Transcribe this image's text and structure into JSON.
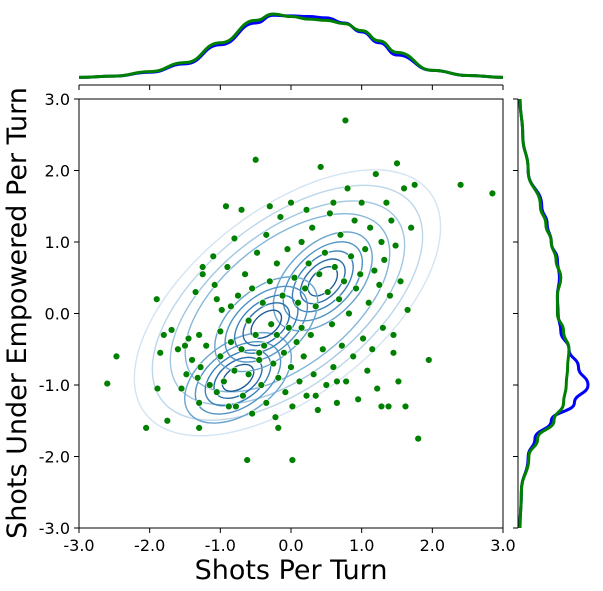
{
  "chart_data": {
    "type": "scatter",
    "title": "",
    "xlabel": "Shots Per Turn",
    "ylabel": "Shots Under Empowered Per Turn",
    "xlim": [
      -3.0,
      3.0
    ],
    "ylim": [
      -3.0,
      3.0
    ],
    "xticks": [
      "-3.0",
      "-2.0",
      "-1.0",
      "0.0",
      "1.0",
      "2.0",
      "3.0"
    ],
    "yticks": [
      "-3.0",
      "-2.0",
      "-1.0",
      "0.0",
      "1.0",
      "2.0",
      "3.0"
    ],
    "grid": false,
    "legend": "none",
    "colors": {
      "points": "#008000",
      "marginal_a": "#0000ff",
      "marginal_b": "#008000",
      "contours": "Blues"
    },
    "points": [
      [
        -2.6,
        -0.98
      ],
      [
        -2.47,
        -0.6
      ],
      [
        -2.05,
        -1.6
      ],
      [
        -1.9,
        0.2
      ],
      [
        -1.89,
        -1.05
      ],
      [
        -1.85,
        -0.55
      ],
      [
        -1.8,
        -0.3
      ],
      [
        -1.75,
        -1.5
      ],
      [
        -1.69,
        -0.23
      ],
      [
        -1.6,
        -0.5
      ],
      [
        -1.55,
        -1.05
      ],
      [
        -1.5,
        -0.45
      ],
      [
        -1.48,
        -0.85
      ],
      [
        -1.45,
        -0.35
      ],
      [
        -1.4,
        -0.65
      ],
      [
        -1.35,
        0.3
      ],
      [
        -1.32,
        -0.9
      ],
      [
        -1.3,
        -0.3
      ],
      [
        -1.3,
        -1.25
      ],
      [
        -1.28,
        -0.75
      ],
      [
        -1.25,
        0.55
      ],
      [
        -1.2,
        -0.45
      ],
      [
        -1.15,
        -1.0
      ],
      [
        -1.1,
        0.8
      ],
      [
        -1.08,
        0.4
      ],
      [
        -1.05,
        -1.1
      ],
      [
        -1.0,
        -0.25
      ],
      [
        -1.0,
        -0.6
      ],
      [
        -0.98,
        0.05
      ],
      [
        -0.95,
        -0.95
      ],
      [
        -0.9,
        0.65
      ],
      [
        -0.85,
        0.1
      ],
      [
        -0.85,
        -0.4
      ],
      [
        -0.8,
        1.05
      ],
      [
        -0.8,
        -0.8
      ],
      [
        -0.78,
        -1.3
      ],
      [
        -0.75,
        0.25
      ],
      [
        -0.7,
        -0.5
      ],
      [
        -0.68,
        -1.15
      ],
      [
        -0.65,
        0.55
      ],
      [
        -0.6,
        -0.1
      ],
      [
        -0.6,
        -0.85
      ],
      [
        -0.55,
        0.35
      ],
      [
        -0.55,
        -1.4
      ],
      [
        -0.5,
        2.15
      ],
      [
        -0.5,
        -0.3
      ],
      [
        -0.48,
        0.85
      ],
      [
        -0.45,
        -0.65
      ],
      [
        -0.42,
        -1.0
      ],
      [
        -0.4,
        0.15
      ],
      [
        -0.38,
        -0.45
      ],
      [
        -0.35,
        1.1
      ],
      [
        -0.35,
        -1.25
      ],
      [
        -0.3,
        0.45
      ],
      [
        -0.28,
        -0.15
      ],
      [
        -0.25,
        -0.7
      ],
      [
        -0.22,
        -1.45
      ],
      [
        -0.2,
        0.7
      ],
      [
        -0.2,
        -0.3
      ],
      [
        -0.18,
        -0.9
      ],
      [
        -0.15,
        1.35
      ],
      [
        -0.12,
        0.25
      ],
      [
        -0.1,
        -0.55
      ],
      [
        -0.08,
        -1.1
      ],
      [
        -0.05,
        0.9
      ],
      [
        -0.03,
        -0.2
      ],
      [
        0.0,
        -0.75
      ],
      [
        0.0,
        1.55
      ],
      [
        0.02,
        -1.3
      ],
      [
        0.05,
        0.5
      ],
      [
        0.08,
        -0.4
      ],
      [
        0.1,
        0.15
      ],
      [
        0.12,
        -0.95
      ],
      [
        0.15,
        1.0
      ],
      [
        0.18,
        -0.6
      ],
      [
        0.2,
        0.35
      ],
      [
        0.22,
        -1.15
      ],
      [
        0.25,
        0.7
      ],
      [
        0.28,
        -0.3
      ],
      [
        0.3,
        1.2
      ],
      [
        0.32,
        -0.85
      ],
      [
        0.35,
        0.1
      ],
      [
        0.38,
        -1.35
      ],
      [
        0.4,
        0.55
      ],
      [
        0.42,
        2.05
      ],
      [
        0.45,
        -0.5
      ],
      [
        0.48,
        0.85
      ],
      [
        0.5,
        -1.0
      ],
      [
        0.52,
        0.3
      ],
      [
        0.55,
        1.4
      ],
      [
        0.58,
        -0.15
      ],
      [
        0.6,
        -0.75
      ],
      [
        0.62,
        0.65
      ],
      [
        0.65,
        -1.25
      ],
      [
        0.68,
        0.2
      ],
      [
        0.7,
        1.1
      ],
      [
        0.72,
        -0.45
      ],
      [
        0.75,
        0.45
      ],
      [
        0.78,
        -0.95
      ],
      [
        0.8,
        1.75
      ],
      [
        0.82,
        0.0
      ],
      [
        0.85,
        0.8
      ],
      [
        0.88,
        -0.6
      ],
      [
        0.9,
        1.3
      ],
      [
        0.92,
        0.35
      ],
      [
        0.95,
        -1.2
      ],
      [
        0.98,
        0.55
      ],
      [
        1.0,
        1.55
      ],
      [
        1.02,
        -0.35
      ],
      [
        1.05,
        0.9
      ],
      [
        1.08,
        -0.8
      ],
      [
        1.1,
        0.15
      ],
      [
        1.12,
        1.2
      ],
      [
        1.15,
        -0.5
      ],
      [
        1.18,
        0.6
      ],
      [
        1.2,
        1.95
      ],
      [
        1.22,
        -1.05
      ],
      [
        1.25,
        0.4
      ],
      [
        1.28,
        1.0
      ],
      [
        1.3,
        -0.2
      ],
      [
        1.32,
        0.75
      ],
      [
        1.35,
        1.55
      ],
      [
        1.38,
        -1.3
      ],
      [
        1.4,
        0.25
      ],
      [
        1.42,
        1.3
      ],
      [
        1.45,
        -0.55
      ],
      [
        1.48,
        0.95
      ],
      [
        1.5,
        2.1
      ],
      [
        1.52,
        -0.95
      ],
      [
        1.55,
        0.45
      ],
      [
        1.6,
        1.75
      ],
      [
        1.62,
        -1.3
      ],
      [
        1.65,
        0.05
      ],
      [
        1.7,
        1.2
      ],
      [
        1.75,
        1.8
      ],
      [
        1.8,
        -1.75
      ],
      [
        1.95,
        -0.65
      ],
      [
        2.4,
        1.8
      ],
      [
        2.85,
        1.68
      ],
      [
        0.77,
        2.7
      ],
      [
        -0.18,
        -1.6
      ],
      [
        -0.62,
        -2.05
      ],
      [
        0.02,
        -2.05
      ],
      [
        -1.3,
        -1.6
      ],
      [
        -1.05,
        0.2
      ],
      [
        -0.92,
        1.5
      ],
      [
        -1.25,
        0.65
      ],
      [
        -0.7,
        1.45
      ],
      [
        -0.3,
        1.5
      ],
      [
        0.22,
        1.45
      ],
      [
        0.6,
        1.55
      ],
      [
        -0.88,
        -1.3
      ],
      [
        0.35,
        -1.15
      ],
      [
        0.65,
        -0.95
      ],
      [
        -0.45,
        -0.55
      ],
      [
        0.15,
        -0.2
      ],
      [
        1.28,
        -1.3
      ],
      [
        1.45,
        -0.3
      ]
    ],
    "marginal_x": {
      "x": [
        -3.0,
        -2.5,
        -2.0,
        -1.5,
        -1.0,
        -0.5,
        -0.25,
        0.0,
        0.25,
        0.5,
        0.75,
        1.0,
        1.25,
        1.5,
        2.0,
        2.5,
        3.0
      ],
      "series": [
        {
          "values": [
            0.01,
            0.03,
            0.09,
            0.22,
            0.52,
            0.86,
            0.98,
            0.97,
            0.96,
            0.94,
            0.86,
            0.72,
            0.55,
            0.36,
            0.12,
            0.04,
            0.01
          ]
        },
        {
          "values": [
            0.01,
            0.03,
            0.1,
            0.24,
            0.55,
            0.9,
            1.0,
            0.96,
            0.92,
            0.9,
            0.85,
            0.74,
            0.58,
            0.4,
            0.12,
            0.04,
            0.01
          ]
        }
      ]
    },
    "marginal_y": {
      "y": [
        -3.0,
        -2.5,
        -2.0,
        -1.75,
        -1.5,
        -1.25,
        -1.0,
        -0.75,
        -0.5,
        -0.25,
        0.0,
        0.25,
        0.5,
        0.75,
        1.0,
        1.25,
        1.5,
        2.0,
        2.5,
        3.0
      ],
      "series": [
        {
          "values": [
            0.0,
            0.02,
            0.12,
            0.22,
            0.46,
            0.8,
            1.0,
            0.86,
            0.72,
            0.6,
            0.56,
            0.55,
            0.58,
            0.55,
            0.46,
            0.4,
            0.32,
            0.12,
            0.04,
            0.0
          ]
        },
        {
          "values": [
            0.0,
            0.02,
            0.13,
            0.26,
            0.5,
            0.64,
            0.68,
            0.7,
            0.72,
            0.64,
            0.55,
            0.55,
            0.6,
            0.53,
            0.46,
            0.38,
            0.3,
            0.12,
            0.04,
            0.0
          ]
        }
      ]
    }
  }
}
